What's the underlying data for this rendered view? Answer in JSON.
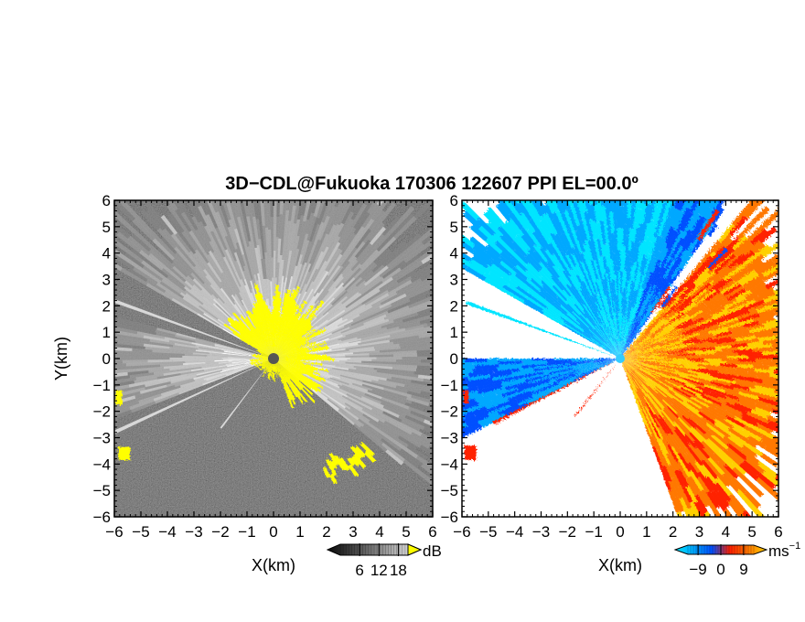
{
  "figure": {
    "title": "3D−CDL@Fukuoka 170306 122607 PPI EL=00.0º"
  },
  "chart_data": [
    {
      "type": "heatmap",
      "panel": "reflectivity",
      "title": "",
      "xlabel": "X(km)",
      "ylabel": "Y(km)",
      "xlim": [
        -6,
        6
      ],
      "ylim": [
        -6,
        6
      ],
      "x_ticks": [
        -6,
        -5,
        -4,
        -3,
        -2,
        -1,
        0,
        1,
        2,
        3,
        4,
        5,
        6
      ],
      "y_ticks": [
        -6,
        -5,
        -4,
        -3,
        -2,
        -1,
        0,
        1,
        2,
        3,
        4,
        5,
        6
      ],
      "x_tick_labels": [
        "−6",
        "−5",
        "−4",
        "−3",
        "−2",
        "−1",
        "0",
        "1",
        "2",
        "3",
        "4",
        "5",
        "6"
      ],
      "y_tick_labels": [
        "−6",
        "−5",
        "−4",
        "−3",
        "−2",
        "−1",
        "0",
        "1",
        "2",
        "3",
        "4",
        "5",
        "6"
      ],
      "grid": false,
      "colorbar": {
        "unit": "dB",
        "ticks": [
          6,
          12,
          18
        ],
        "tick_labels": [
          "6",
          "12",
          "18"
        ],
        "colors": [
          "#0a0a0a",
          "#3c3c3c",
          "#7a7a7a",
          "#b8b8b8",
          "#f0f0f0"
        ],
        "overflow_color": "#ffff00"
      },
      "features": {
        "background_level": "dark gray noise",
        "bright_sector_azimuth_deg": [
          45,
          285
        ],
        "strong_echo_color": "#ffff00",
        "strong_echo_near_origin": true
      }
    },
    {
      "type": "heatmap",
      "panel": "radial_velocity",
      "title": "",
      "xlabel": "X(km)",
      "ylabel": "",
      "xlim": [
        -6,
        6
      ],
      "ylim": [
        -6,
        6
      ],
      "x_ticks": [
        -6,
        -5,
        -4,
        -3,
        -2,
        -1,
        0,
        1,
        2,
        3,
        4,
        5,
        6
      ],
      "y_ticks": [
        -6,
        -5,
        -4,
        -3,
        -2,
        -1,
        0,
        1,
        2,
        3,
        4,
        5,
        6
      ],
      "x_tick_labels": [
        "−6",
        "−5",
        "−4",
        "−3",
        "−2",
        "−1",
        "0",
        "1",
        "2",
        "3",
        "4",
        "5",
        "6"
      ],
      "y_tick_labels": [
        "−6",
        "−5",
        "−4",
        "−3",
        "−2",
        "−1",
        "0",
        "1",
        "2",
        "3",
        "4",
        "5",
        "6"
      ],
      "grid": false,
      "colorbar": {
        "unit": "ms",
        "unit_exponent": "−1",
        "ticks": [
          -9,
          0,
          9
        ],
        "tick_labels": [
          "−9",
          "0",
          "9"
        ],
        "colors": [
          "#00e5ff",
          "#00a8ff",
          "#0050ff",
          "#ff2000",
          "#ff7800",
          "#ffd000"
        ]
      },
      "features": {
        "negative_side": "upper-left sector, blue tones",
        "positive_side": "lower-right sector, red-orange-yellow tones",
        "center_color": "#33ccff"
      }
    }
  ]
}
